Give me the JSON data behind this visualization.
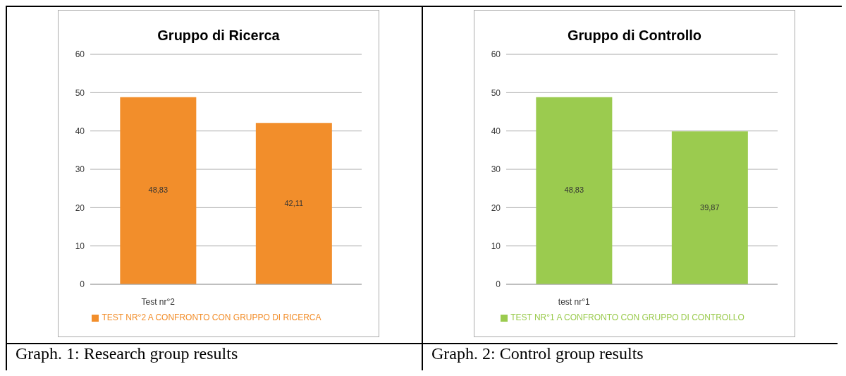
{
  "chart_data": [
    {
      "type": "bar",
      "title": "Gruppo di Ricerca",
      "categories": [
        "Test nr°2",
        null
      ],
      "series": [
        {
          "name": "TEST NR°2 A CONFRONTO CON GRUPPO DI RICERCA",
          "color": "#f28e2b",
          "values": [
            48.83,
            42.11
          ]
        }
      ],
      "value_labels": [
        "48,83",
        "42,11"
      ],
      "ylim": [
        0,
        60
      ],
      "yticks": [
        0,
        10,
        20,
        30,
        40,
        50,
        60
      ],
      "grid": "y",
      "legend": "bottom",
      "annotations": [
        "Graph. 1: Research group results"
      ]
    },
    {
      "type": "bar",
      "title": "Gruppo di Controllo",
      "categories": [
        "test nr°1",
        null
      ],
      "series": [
        {
          "name": "TEST NR°1 A CONFRONTO CON GRUPPO DI CONTROLLO",
          "color": "#9bcb4f",
          "values": [
            48.83,
            39.87
          ]
        }
      ],
      "value_labels": [
        "48,83",
        "39,87"
      ],
      "ylim": [
        0,
        60
      ],
      "yticks": [
        0,
        10,
        20,
        30,
        40,
        50,
        60
      ],
      "grid": "y",
      "legend": "bottom",
      "annotations": [
        "Graph. 2: Control group results"
      ]
    }
  ]
}
